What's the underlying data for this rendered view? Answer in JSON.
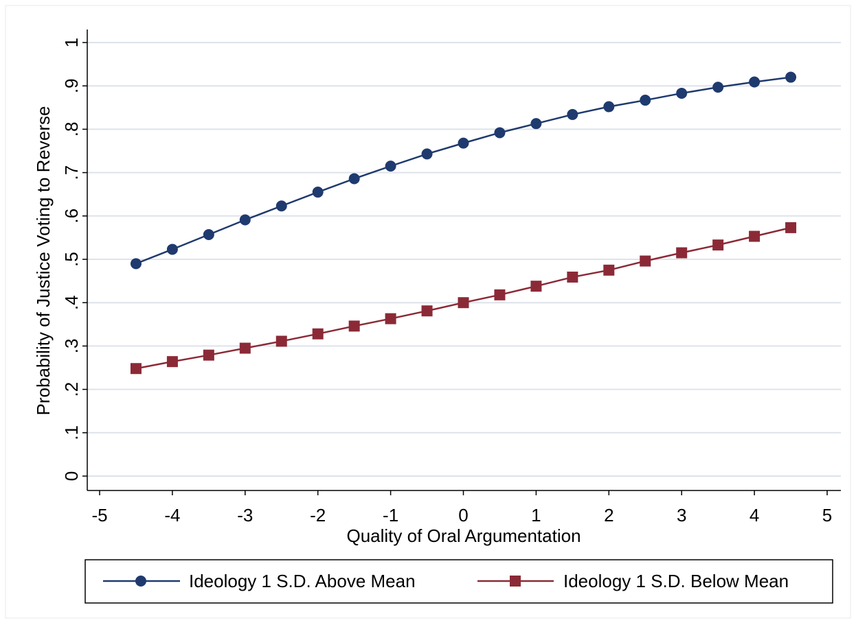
{
  "chart_data": {
    "type": "line",
    "xlabel": "Quality of Oral Argumentation",
    "ylabel": "Probability of Justice Voting to Reverse",
    "xlim": [
      -5,
      5
    ],
    "ylim": [
      0,
      1
    ],
    "x_ticks": [
      -5,
      -4,
      -3,
      -2,
      -1,
      0,
      1,
      2,
      3,
      4,
      5
    ],
    "x_tick_labels": [
      "-5",
      "-4",
      "-3",
      "-2",
      "-1",
      "0",
      "1",
      "2",
      "3",
      "4",
      "5"
    ],
    "y_ticks": [
      0,
      0.1,
      0.2,
      0.3,
      0.4,
      0.5,
      0.6,
      0.7,
      0.8,
      0.9,
      1
    ],
    "y_tick_labels": [
      "0",
      ".1",
      ".2",
      ".3",
      ".4",
      ".5",
      ".6",
      ".7",
      ".8",
      ".9",
      "1"
    ],
    "grid": true,
    "legend_position": "bottom",
    "x": [
      -4.5,
      -4,
      -3.5,
      -3,
      -2.5,
      -2,
      -1.5,
      -1,
      -0.5,
      0,
      0.5,
      1,
      1.5,
      2,
      2.5,
      3,
      3.5,
      4,
      4.5
    ],
    "series": [
      {
        "name": "Ideology 1 S.D. Above Mean",
        "color": "#1f3a6e",
        "marker": "circle",
        "values": [
          0.49,
          0.523,
          0.557,
          0.591,
          0.623,
          0.655,
          0.686,
          0.715,
          0.743,
          0.768,
          0.792,
          0.813,
          0.834,
          0.852,
          0.867,
          0.883,
          0.897,
          0.909,
          0.92
        ]
      },
      {
        "name": "Ideology 1 S.D. Below Mean",
        "color": "#8b2a36",
        "marker": "square",
        "values": [
          0.248,
          0.264,
          0.279,
          0.295,
          0.311,
          0.328,
          0.346,
          0.363,
          0.381,
          0.4,
          0.418,
          0.438,
          0.459,
          0.475,
          0.496,
          0.515,
          0.533,
          0.553,
          0.573
        ]
      }
    ]
  }
}
